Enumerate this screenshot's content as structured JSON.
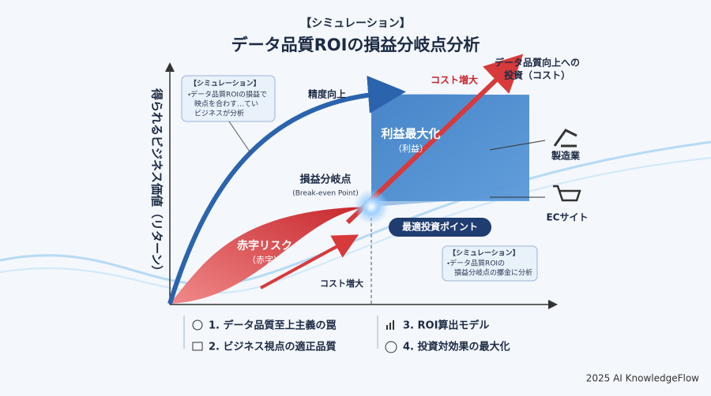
{
  "header": {
    "subtitle": "【シミュレーション】",
    "title": "データ品質ROIの損益分岐点分析"
  },
  "y_axis_label": "得られるビジネス価値（リターン）",
  "callout_left": {
    "title": "【シミュレーション】",
    "lines": [
      "・データ品質ROIの損益で",
      "映点を合わす…てい",
      "ビジネスが分析"
    ]
  },
  "callout_right": {
    "title": "【シミュレーション】",
    "lines": [
      "・データ品質ROIの",
      "損益分岐点の擲金に分析"
    ]
  },
  "labels": {
    "accuracy": "精度向上",
    "cost_up_top": "コスト増大",
    "investment": [
      "データ品質向上への",
      "投資（コスト）"
    ],
    "profit": [
      "利益最大化",
      "（利益）"
    ],
    "break_even": [
      "損益分岐点",
      "(Break-even Point)"
    ],
    "optimal": "最適投資ポイント",
    "loss": [
      "赤字リスク",
      "（赤字）"
    ],
    "cost_up_bottom": "コスト増大"
  },
  "industries": [
    "製造業",
    "ECサイト"
  ],
  "legend": [
    "1. データ品質至上主義の罠",
    "2. ビジネス視点の適正品質",
    "3. ROI算出モデル",
    "4. 投資対効果の最大化"
  ],
  "footer": "2025 AI KnowledgeFlow"
}
